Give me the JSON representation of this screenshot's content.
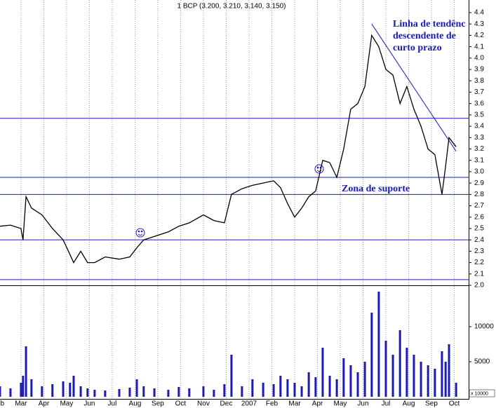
{
  "chart_data": [
    {
      "type": "line",
      "title": "1 BCP (3.200, 3.210, 3.140, 3.150)",
      "x": [
        1.08,
        1.54,
        2.0,
        2.09,
        2.22,
        2.46,
        2.92,
        3.38,
        3.85,
        4.15,
        4.31,
        4.62,
        4.92,
        5.23,
        5.69,
        6.31,
        6.77,
        7.08,
        7.38,
        7.85,
        8.46,
        8.92,
        9.38,
        10.0,
        10.46,
        10.92,
        11.23,
        11.69,
        12.15,
        12.62,
        13.08,
        13.38,
        13.69,
        14.0,
        14.31,
        14.62,
        14.92,
        15.23,
        15.54,
        15.85,
        16.15,
        16.46,
        16.77,
        17.08,
        17.38,
        17.69,
        18.0,
        18.31,
        18.62,
        18.92,
        19.23,
        19.54,
        19.85,
        20.15,
        20.46,
        20.62,
        20.77,
        21.08
      ],
      "values": [
        2.52,
        2.53,
        2.5,
        2.4,
        2.78,
        2.68,
        2.62,
        2.5,
        2.4,
        2.27,
        2.2,
        2.3,
        2.2,
        2.2,
        2.25,
        2.23,
        2.25,
        2.33,
        2.4,
        2.43,
        2.47,
        2.52,
        2.55,
        2.62,
        2.57,
        2.55,
        2.8,
        2.85,
        2.88,
        2.9,
        2.92,
        2.86,
        2.72,
        2.6,
        2.68,
        2.78,
        2.83,
        3.1,
        3.08,
        2.95,
        3.2,
        3.55,
        3.6,
        3.75,
        4.2,
        4.1,
        3.9,
        3.85,
        3.6,
        3.75,
        3.55,
        3.4,
        3.2,
        3.15,
        2.8,
        3.05,
        3.3,
        3.22
      ],
      "color": "#000000",
      "xlim": [
        1.08,
        21.63
      ],
      "ylim": [
        2.0,
        4.4
      ],
      "yticks": [
        {
          "value": 2.0,
          "label": "2.0"
        },
        2.1,
        2.2,
        2.3,
        2.4,
        2.5,
        2.6,
        2.7,
        2.8,
        2.9,
        {
          "value": 3.0,
          "label": "3.0"
        },
        3.1,
        3.2,
        3.3,
        3.4,
        3.5,
        3.6,
        3.7,
        3.8,
        3.9,
        {
          "value": 4.0,
          "label": "4.0"
        },
        4.1,
        4.2,
        4.3,
        4.4
      ],
      "hlines": [
        3.47,
        2.95,
        2.8,
        2.4,
        2.05
      ],
      "line_color": "#1a1ab4",
      "trendline": {
        "x": [
          17.38,
          21.08
        ],
        "y": [
          4.3,
          3.18
        ]
      },
      "annotations": [
        [
          "Linha de tendênc",
          "descendente de",
          "curto prazo"
        ],
        [
          "Zona de suporte"
        ]
      ]
    },
    {
      "type": "bar",
      "x": [
        1.08,
        1.54,
        2.0,
        2.09,
        2.22,
        2.46,
        2.92,
        3.38,
        3.85,
        4.15,
        4.31,
        4.62,
        4.92,
        5.23,
        5.69,
        6.31,
        6.77,
        7.08,
        7.38,
        7.85,
        8.46,
        8.92,
        9.38,
        10.0,
        10.46,
        10.92,
        11.23,
        11.69,
        12.15,
        12.62,
        13.08,
        13.38,
        13.69,
        14.0,
        14.31,
        14.62,
        14.92,
        15.23,
        15.54,
        15.85,
        16.15,
        16.46,
        16.77,
        17.08,
        17.38,
        17.69,
        18.0,
        18.31,
        18.62,
        18.92,
        19.23,
        19.54,
        19.85,
        20.15,
        20.46,
        20.62,
        20.77,
        21.08
      ],
      "values": [
        1500,
        1200,
        2000,
        3000,
        7200,
        2500,
        1500,
        1800,
        2200,
        2000,
        3000,
        1500,
        1200,
        1000,
        900,
        1100,
        1300,
        2500,
        1500,
        1200,
        1000,
        1400,
        1200,
        1500,
        1000,
        1800,
        6000,
        1500,
        2500,
        2000,
        1800,
        3000,
        2500,
        2000,
        1500,
        3500,
        2800,
        7000,
        3000,
        2500,
        5500,
        4500,
        3500,
        5000,
        12000,
        15000,
        8000,
        6000,
        9500,
        7000,
        6000,
        5000,
        4500,
        4000,
        6500,
        5000,
        7500,
        2000
      ],
      "color": "#1a1ab4",
      "xlim": [
        1.08,
        21.63
      ],
      "ylim": [
        0,
        15800
      ],
      "yticks": [
        5000,
        10000
      ],
      "xticks": [
        {
          "value": 1,
          "label": "Feb"
        },
        {
          "value": 2,
          "label": "Mar"
        },
        {
          "value": 3,
          "label": "Apr"
        },
        {
          "value": 4,
          "label": "May"
        },
        {
          "value": 5,
          "label": "Jun"
        },
        {
          "value": 6,
          "label": "Jul"
        },
        {
          "value": 7,
          "label": "Aug"
        },
        {
          "value": 8,
          "label": "Sep"
        },
        {
          "value": 9,
          "label": "Oct"
        },
        {
          "value": 10,
          "label": "Nov"
        },
        {
          "value": 11,
          "label": "Dec"
        },
        {
          "value": 12,
          "label": "2007"
        },
        {
          "value": 13,
          "label": "Feb"
        },
        {
          "value": 14,
          "label": "Mar"
        },
        {
          "value": 15,
          "label": "Apr"
        },
        {
          "value": 16,
          "label": "May"
        },
        {
          "value": 17,
          "label": "Jun"
        },
        {
          "value": 18,
          "label": "Jul"
        },
        {
          "value": 19,
          "label": "Aug"
        },
        {
          "value": 20,
          "label": "Sep"
        },
        {
          "value": 21,
          "label": "Oct"
        }
      ],
      "unit_label": "x 10000"
    }
  ]
}
